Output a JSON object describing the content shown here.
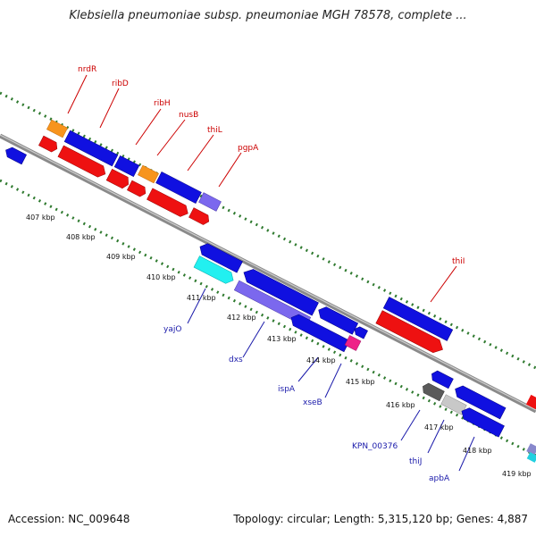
{
  "title": "Klebsiella pneumoniae subsp. pneumoniae MGH 78578, complete ...",
  "footer": {
    "accession": "Accession: NC_009648",
    "topology": "Topology: circular; Length: 5,315,120 bp; Genes: 4,887"
  },
  "colors": {
    "forward_label": "#cc0000",
    "reverse_label": "#1a1aaa",
    "backbone": "#8a8a8a",
    "tick": "#2f7a2f"
  },
  "forward_gene_labels": [
    "nrdR",
    "ribD",
    "ribH",
    "nusB",
    "thiL",
    "pgpA",
    "thiI"
  ],
  "reverse_gene_labels": [
    "yajO",
    "dxs",
    "ispA",
    "xseB",
    "KPN_00376",
    "thiJ",
    "apbA"
  ],
  "kbp_labels": [
    "407 kbp",
    "408 kbp",
    "409 kbp",
    "410 kbp",
    "411 kbp",
    "412 kbp",
    "413 kbp",
    "414 kbp",
    "415 kbp",
    "416 kbp",
    "417 kbp",
    "418 kbp",
    "419 kbp"
  ]
}
